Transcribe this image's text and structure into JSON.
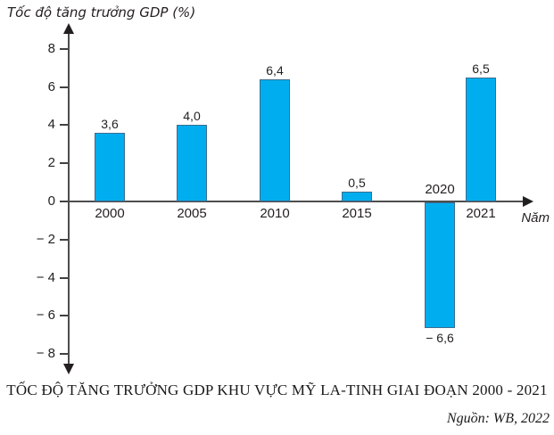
{
  "chart_data": {
    "type": "bar",
    "title": "TỐC ĐỘ TĂNG TRƯỞNG GDP KHU VỰC MỸ LA-TINH GIAI ĐOẠN 2000 - 2021",
    "source": "Nguồn: WB, 2022",
    "ylabel": "Tốc độ tăng trưởng GDP (%)",
    "xlabel": "Năm",
    "categories": [
      "2000",
      "2005",
      "2010",
      "2015",
      "2020",
      "2021"
    ],
    "values": [
      3.6,
      4.0,
      6.4,
      0.5,
      -6.6,
      6.5
    ],
    "value_labels": [
      "3,6",
      "4,0",
      "6,4",
      "0,5",
      "− 6,6",
      "6,5"
    ],
    "y_ticks": [
      8,
      6,
      4,
      2,
      0,
      -2,
      -4,
      -6,
      -8
    ],
    "y_tick_labels": [
      "8",
      "6",
      "4",
      "2",
      "0",
      "− 2",
      "− 4",
      "− 6",
      "− 8"
    ],
    "ylim": [
      -9,
      9
    ],
    "grid": false,
    "legend": null,
    "bar_color": "#00AEEF",
    "bar_border_color": "#3D6E8F",
    "axis_color": "#4D4D4F",
    "text_color": "#231F20"
  }
}
